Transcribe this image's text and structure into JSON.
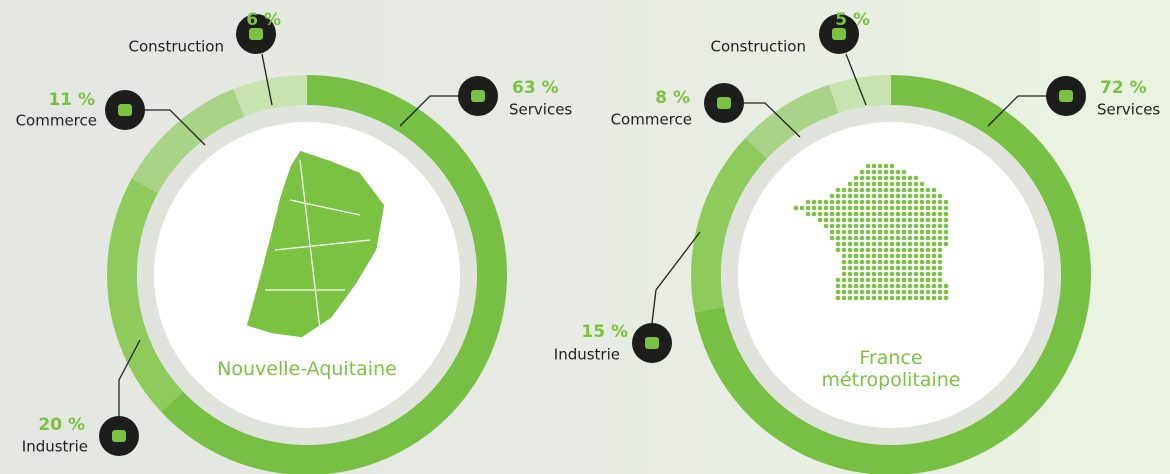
{
  "chart_data": [
    {
      "type": "pie",
      "title": "Nouvelle-Aquitaine",
      "categories": [
        "Services",
        "Industrie",
        "Commerce",
        "Construction"
      ],
      "values": [
        63,
        20,
        11,
        6
      ],
      "value_labels": [
        "63 %",
        "20 %",
        "11 %",
        "6 %"
      ],
      "colors": [
        "#77c043",
        "#8ecb5c",
        "#a9d487",
        "#c7e4b0"
      ]
    },
    {
      "type": "pie",
      "title": "France métropolitaine",
      "categories": [
        "Services",
        "Industrie",
        "Commerce",
        "Construction"
      ],
      "values": [
        72,
        15,
        8,
        5
      ],
      "value_labels": [
        "72 %",
        "15 %",
        "8 %",
        "5 %"
      ],
      "colors": [
        "#77c043",
        "#8ecb5c",
        "#a9d487",
        "#c7e4b0"
      ]
    }
  ]
}
